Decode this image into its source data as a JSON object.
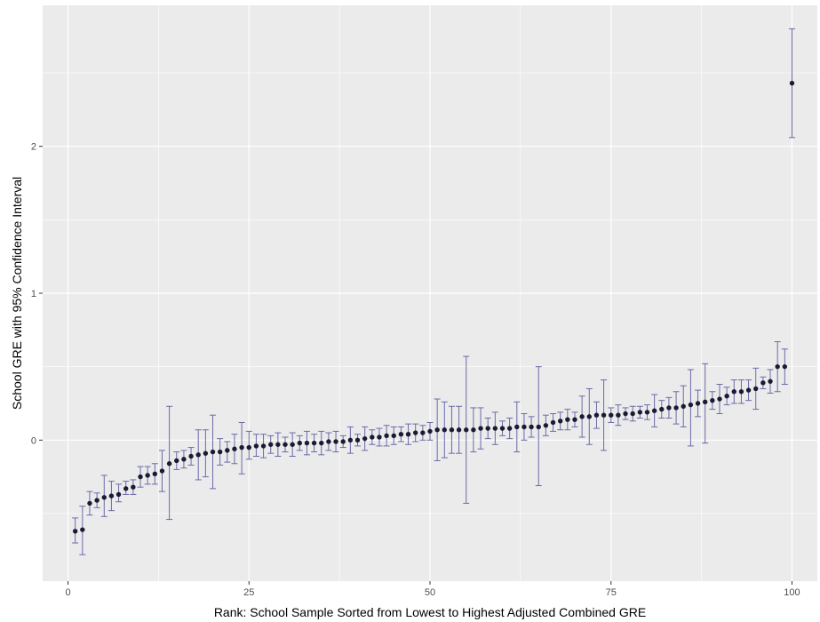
{
  "chart_data": {
    "type": "scatter",
    "xlabel": "Rank: School Sample Sorted from Lowest to Highest Adjusted Combined GRE",
    "ylabel": "School GRE with 95% Confidence Interval",
    "xlim": [
      -3.5,
      103.5
    ],
    "ylim": [
      -0.96,
      2.96
    ],
    "x_ticks": [
      0,
      25,
      50,
      75,
      100
    ],
    "x_tick_labels": [
      "0",
      "25",
      "50",
      "75",
      "100"
    ],
    "y_ticks": [
      0,
      1,
      2
    ],
    "y_tick_labels": [
      "0",
      "1",
      "2"
    ],
    "x_minor": [
      12.5,
      37.5,
      62.5,
      87.5
    ],
    "y_minor": [
      -0.5,
      0.5,
      1.5,
      2.5
    ],
    "grid": true,
    "series": [
      {
        "x": [
          1,
          2,
          3,
          4,
          5,
          6,
          7,
          8,
          9,
          10,
          11,
          12,
          13,
          14,
          15,
          16,
          17,
          18,
          19,
          20,
          21,
          22,
          23,
          24,
          25,
          26,
          27,
          28,
          29,
          30,
          31,
          32,
          33,
          34,
          35,
          36,
          37,
          38,
          39,
          40,
          41,
          42,
          43,
          44,
          45,
          46,
          47,
          48,
          49,
          50,
          51,
          52,
          53,
          54,
          55,
          56,
          57,
          58,
          59,
          60,
          61,
          62,
          63,
          64,
          65,
          66,
          67,
          68,
          69,
          70,
          71,
          72,
          73,
          74,
          75,
          76,
          77,
          78,
          79,
          80,
          81,
          82,
          83,
          84,
          85,
          86,
          87,
          88,
          89,
          90,
          91,
          92,
          93,
          94,
          95,
          96,
          97,
          98,
          99,
          100
        ],
        "y": [
          -0.62,
          -0.61,
          -0.43,
          -0.41,
          -0.39,
          -0.38,
          -0.37,
          -0.33,
          -0.32,
          -0.25,
          -0.24,
          -0.23,
          -0.21,
          -0.16,
          -0.14,
          -0.13,
          -0.11,
          -0.1,
          -0.09,
          -0.08,
          -0.08,
          -0.07,
          -0.06,
          -0.05,
          -0.05,
          -0.04,
          -0.04,
          -0.03,
          -0.03,
          -0.03,
          -0.03,
          -0.02,
          -0.02,
          -0.02,
          -0.02,
          -0.01,
          -0.01,
          -0.01,
          0.0,
          0.0,
          0.01,
          0.02,
          0.02,
          0.03,
          0.03,
          0.04,
          0.04,
          0.05,
          0.05,
          0.06,
          0.07,
          0.07,
          0.07,
          0.07,
          0.07,
          0.07,
          0.08,
          0.08,
          0.08,
          0.08,
          0.08,
          0.09,
          0.09,
          0.09,
          0.09,
          0.1,
          0.12,
          0.13,
          0.14,
          0.14,
          0.16,
          0.16,
          0.17,
          0.17,
          0.17,
          0.17,
          0.18,
          0.18,
          0.19,
          0.19,
          0.2,
          0.21,
          0.22,
          0.22,
          0.23,
          0.24,
          0.25,
          0.26,
          0.27,
          0.28,
          0.3,
          0.33,
          0.33,
          0.34,
          0.35,
          0.39,
          0.4,
          0.5,
          0.5,
          2.43
        ],
        "lower": [
          -0.7,
          -0.78,
          -0.51,
          -0.46,
          -0.52,
          -0.48,
          -0.42,
          -0.37,
          -0.37,
          -0.32,
          -0.3,
          -0.3,
          -0.35,
          -0.54,
          -0.2,
          -0.19,
          -0.17,
          -0.27,
          -0.25,
          -0.33,
          -0.17,
          -0.15,
          -0.16,
          -0.23,
          -0.13,
          -0.11,
          -0.12,
          -0.09,
          -0.11,
          -0.08,
          -0.11,
          -0.07,
          -0.1,
          -0.08,
          -0.1,
          -0.07,
          -0.08,
          -0.05,
          -0.09,
          -0.04,
          -0.07,
          -0.03,
          -0.04,
          -0.04,
          -0.03,
          -0.01,
          -0.03,
          -0.01,
          0.0,
          0.0,
          -0.14,
          -0.12,
          -0.09,
          -0.09,
          -0.43,
          -0.08,
          -0.06,
          0.01,
          -0.03,
          0.03,
          0.01,
          -0.08,
          0.0,
          0.02,
          -0.31,
          0.03,
          0.06,
          0.07,
          0.07,
          0.09,
          0.02,
          -0.03,
          0.08,
          -0.07,
          0.12,
          0.1,
          0.14,
          0.13,
          0.15,
          0.14,
          0.09,
          0.15,
          0.15,
          0.11,
          0.09,
          -0.04,
          0.16,
          -0.02,
          0.21,
          0.18,
          0.24,
          0.25,
          0.25,
          0.27,
          0.21,
          0.35,
          0.32,
          0.33,
          0.38,
          2.06
        ],
        "upper": [
          -0.53,
          -0.45,
          -0.35,
          -0.36,
          -0.24,
          -0.28,
          -0.3,
          -0.28,
          -0.27,
          -0.18,
          -0.18,
          -0.16,
          -0.07,
          0.23,
          -0.08,
          -0.07,
          -0.05,
          0.07,
          0.07,
          0.17,
          0.01,
          -0.01,
          0.04,
          0.12,
          0.06,
          0.04,
          0.04,
          0.03,
          0.05,
          0.02,
          0.05,
          0.03,
          0.06,
          0.04,
          0.06,
          0.05,
          0.06,
          0.03,
          0.09,
          0.04,
          0.09,
          0.07,
          0.08,
          0.1,
          0.09,
          0.09,
          0.11,
          0.11,
          0.1,
          0.12,
          0.28,
          0.26,
          0.23,
          0.23,
          0.57,
          0.22,
          0.22,
          0.15,
          0.19,
          0.13,
          0.15,
          0.26,
          0.18,
          0.16,
          0.5,
          0.17,
          0.18,
          0.19,
          0.21,
          0.19,
          0.3,
          0.35,
          0.26,
          0.41,
          0.22,
          0.24,
          0.22,
          0.23,
          0.23,
          0.24,
          0.31,
          0.27,
          0.29,
          0.33,
          0.37,
          0.48,
          0.34,
          0.52,
          0.33,
          0.38,
          0.36,
          0.41,
          0.41,
          0.41,
          0.49,
          0.43,
          0.48,
          0.67,
          0.62,
          2.8
        ]
      }
    ],
    "colors": {
      "panel": "#ebebeb",
      "grid_major": "#ffffff",
      "point": "#1a1a33",
      "errorbar": "#6a6aa8",
      "tick_text": "#4d4d4d"
    }
  }
}
